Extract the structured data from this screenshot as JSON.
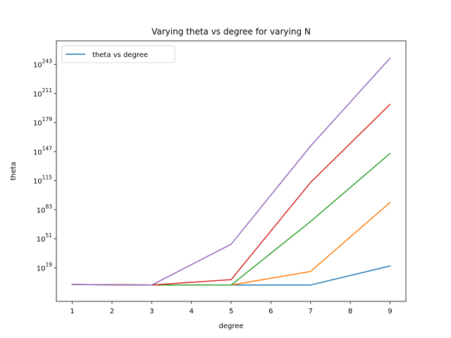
{
  "chart_data": {
    "type": "line",
    "title": "Varying theta vs degree for varying N",
    "xlabel": "degree",
    "ylabel": "theta",
    "yscale": "log",
    "xlim": [
      0.6,
      9.4
    ],
    "ylim_exponent": [
      -18,
      269
    ],
    "x_ticks": [
      "1",
      "2",
      "3",
      "4",
      "5",
      "6",
      "7",
      "8",
      "9"
    ],
    "y_ticks": [
      {
        "base": "10",
        "exp": "19",
        "value_exp": 19
      },
      {
        "base": "10",
        "exp": "51",
        "value_exp": 51
      },
      {
        "base": "10",
        "exp": "83",
        "value_exp": 83
      },
      {
        "base": "10",
        "exp": "115",
        "value_exp": 115
      },
      {
        "base": "10",
        "exp": "147",
        "value_exp": 147
      },
      {
        "base": "10",
        "exp": "179",
        "value_exp": 179
      },
      {
        "base": "10",
        "exp": "211",
        "value_exp": 211
      },
      {
        "base": "10",
        "exp": "243",
        "value_exp": 243
      }
    ],
    "grid": false,
    "legend": {
      "position": "upper-left",
      "entries": [
        "theta vs degree"
      ]
    },
    "x": [
      1,
      3,
      5,
      7,
      9
    ],
    "series": [
      {
        "color": "#1f77b4",
        "log10_values": [
          0.5,
          0,
          0,
          0,
          21
        ]
      },
      {
        "color": "#ff7f0e",
        "log10_values": [
          0.5,
          0,
          0,
          15,
          91
        ]
      },
      {
        "color": "#2ca02c",
        "log10_values": [
          0.5,
          0,
          0,
          70,
          145
        ]
      },
      {
        "color": "#d62728",
        "log10_values": [
          0.5,
          0,
          6,
          113,
          199
        ]
      },
      {
        "color": "#9467bd",
        "log10_values": [
          0.5,
          0,
          45,
          153,
          250
        ]
      }
    ]
  }
}
